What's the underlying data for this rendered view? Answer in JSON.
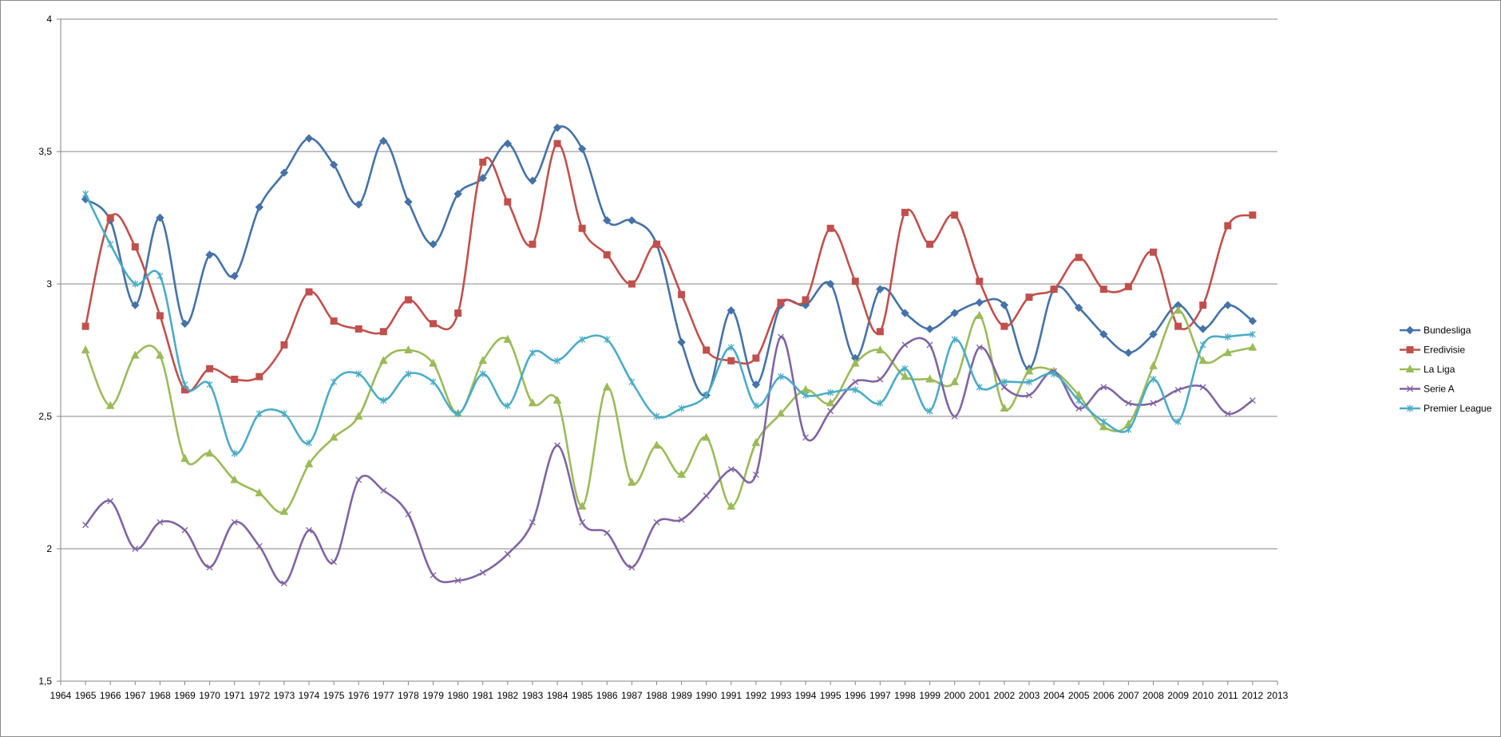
{
  "chart_data": {
    "type": "line",
    "title": "",
    "xlabel": "",
    "ylabel": "",
    "x": [
      1965,
      1966,
      1967,
      1968,
      1969,
      1970,
      1971,
      1972,
      1973,
      1974,
      1975,
      1976,
      1977,
      1978,
      1979,
      1980,
      1981,
      1982,
      1983,
      1984,
      1985,
      1986,
      1987,
      1988,
      1989,
      1990,
      1991,
      1992,
      1993,
      1994,
      1995,
      1996,
      1997,
      1998,
      1999,
      2000,
      2001,
      2002,
      2003,
      2004,
      2005,
      2006,
      2007,
      2008,
      2009,
      2010,
      2011,
      2012
    ],
    "xlim": [
      1964,
      2013
    ],
    "x_ticks": [
      "1964",
      "1965",
      "1966",
      "1967",
      "1968",
      "1969",
      "1970",
      "1971",
      "1972",
      "1973",
      "1974",
      "1975",
      "1976",
      "1977",
      "1978",
      "1979",
      "1980",
      "1981",
      "1982",
      "1983",
      "1984",
      "1985",
      "1986",
      "1987",
      "1988",
      "1989",
      "1990",
      "1991",
      "1992",
      "1993",
      "1994",
      "1995",
      "1996",
      "1997",
      "1998",
      "1999",
      "2000",
      "2001",
      "2002",
      "2003",
      "2004",
      "2005",
      "2006",
      "2007",
      "2008",
      "2009",
      "2010",
      "2011",
      "2012",
      "2013"
    ],
    "ylim": [
      1.5,
      4
    ],
    "y_ticks": [
      {
        "value": 1.5,
        "label": "1,5"
      },
      {
        "value": 2,
        "label": "2"
      },
      {
        "value": 2.5,
        "label": "2,5"
      },
      {
        "value": 3,
        "label": "3"
      },
      {
        "value": 3.5,
        "label": "3,5"
      },
      {
        "value": 4,
        "label": "4"
      }
    ],
    "grid": "horizontal",
    "smooth": true,
    "legend_position": "right",
    "series": [
      {
        "name": "Bundesliga",
        "color": "#4572a7",
        "marker": "diamond",
        "values": [
          3.32,
          3.24,
          2.92,
          3.25,
          2.85,
          3.11,
          3.03,
          3.29,
          3.42,
          3.55,
          3.45,
          3.3,
          3.54,
          3.31,
          3.15,
          3.34,
          3.4,
          3.53,
          3.39,
          3.59,
          3.51,
          3.24,
          3.24,
          3.15,
          2.78,
          2.58,
          2.9,
          2.62,
          2.92,
          2.92,
          3.0,
          2.72,
          2.98,
          2.89,
          2.83,
          2.89,
          2.93,
          2.92,
          2.68,
          2.98,
          2.91,
          2.81,
          2.74,
          2.81,
          2.92,
          2.83,
          2.92,
          2.86
        ]
      },
      {
        "name": "Eredivisie",
        "color": "#c0504d",
        "marker": "square",
        "values": [
          2.84,
          3.25,
          3.14,
          2.88,
          2.6,
          2.68,
          2.64,
          2.65,
          2.77,
          2.97,
          2.86,
          2.83,
          2.82,
          2.94,
          2.85,
          2.89,
          3.46,
          3.31,
          3.15,
          3.53,
          3.21,
          3.11,
          3.0,
          3.15,
          2.96,
          2.75,
          2.71,
          2.72,
          2.93,
          2.94,
          3.21,
          3.01,
          2.82,
          3.27,
          3.15,
          3.26,
          3.01,
          2.84,
          2.95,
          2.98,
          3.1,
          2.98,
          2.99,
          3.12,
          2.84,
          2.92,
          3.22,
          3.26
        ]
      },
      {
        "name": "La Liga",
        "color": "#9bbb59",
        "marker": "triangle",
        "values": [
          2.75,
          2.54,
          2.73,
          2.73,
          2.34,
          2.36,
          2.26,
          2.21,
          2.14,
          2.32,
          2.42,
          2.5,
          2.71,
          2.75,
          2.7,
          2.51,
          2.71,
          2.79,
          2.55,
          2.56,
          2.16,
          2.61,
          2.25,
          2.39,
          2.28,
          2.42,
          2.16,
          2.4,
          2.51,
          2.6,
          2.55,
          2.7,
          2.75,
          2.65,
          2.64,
          2.63,
          2.88,
          2.53,
          2.67,
          2.67,
          2.58,
          2.46,
          2.47,
          2.69,
          2.9,
          2.71,
          2.74,
          2.76
        ]
      },
      {
        "name": "Serie A",
        "color": "#8064a2",
        "marker": "x",
        "values": [
          2.09,
          2.18,
          2.0,
          2.1,
          2.07,
          1.93,
          2.1,
          2.01,
          1.87,
          2.07,
          1.95,
          2.26,
          2.22,
          2.13,
          1.9,
          1.88,
          1.91,
          1.98,
          2.1,
          2.39,
          2.1,
          2.06,
          1.93,
          2.1,
          2.11,
          2.2,
          2.3,
          2.28,
          2.8,
          2.42,
          2.52,
          2.63,
          2.64,
          2.77,
          2.77,
          2.5,
          2.76,
          2.61,
          2.58,
          2.67,
          2.53,
          2.61,
          2.55,
          2.55,
          2.6,
          2.61,
          2.51,
          2.56
        ]
      },
      {
        "name": "Premier League",
        "color": "#4bacc6",
        "marker": "asterisk",
        "values": [
          3.34,
          3.15,
          3.0,
          3.03,
          2.62,
          2.62,
          2.36,
          2.51,
          2.51,
          2.4,
          2.63,
          2.66,
          2.56,
          2.66,
          2.63,
          2.51,
          2.66,
          2.54,
          2.74,
          2.71,
          2.79,
          2.79,
          2.63,
          2.5,
          2.53,
          2.58,
          2.76,
          2.54,
          2.65,
          2.58,
          2.59,
          2.6,
          2.55,
          2.68,
          2.52,
          2.79,
          2.61,
          2.63,
          2.63,
          2.66,
          2.56,
          2.48,
          2.45,
          2.64,
          2.48,
          2.77,
          2.8,
          2.81
        ]
      }
    ]
  }
}
